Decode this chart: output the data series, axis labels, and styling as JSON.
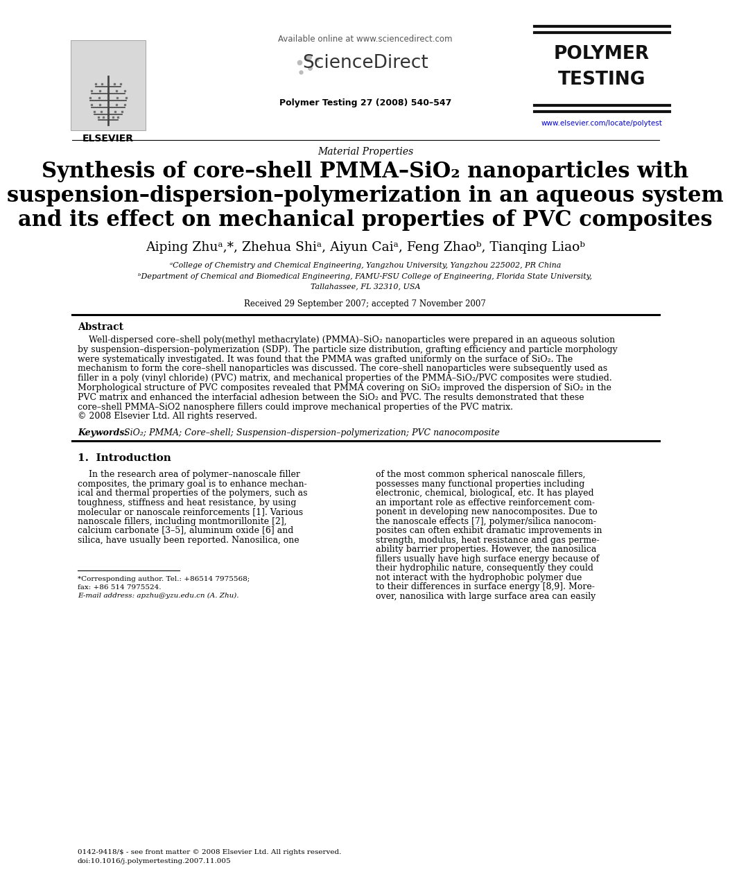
{
  "bg_color": "#ffffff",
  "available_online": "Available online at www.sciencedirect.com",
  "sciencedirect": "ScienceDirect",
  "journal_info": "Polymer Testing 27 (2008) 540–547",
  "journal_url": "www.elsevier.com/locate/polytest",
  "polymer_testing_line1": "POLYMER",
  "polymer_testing_line2": "TESTING",
  "elsevier": "ELSEVIER",
  "section_label": "Material Properties",
  "title_line1": "Synthesis of core–shell PMMA–SiO₂ nanoparticles with",
  "title_line2": "suspension–dispersion–polymerization in an aqueous system",
  "title_line3": "and its effect on mechanical properties of PVC composites",
  "authors": "Aiping Zhuᵃ,*, Zhehua Shiᵃ, Aiyun Caiᵃ, Feng Zhaoᵇ, Tianqing Liaoᵇ",
  "affil_a": "ᵃCollege of Chemistry and Chemical Engineering, Yangzhou University, Yangzhou 225002, PR China",
  "affil_b": "ᵇDepartment of Chemical and Biomedical Engineering, FAMU-FSU College of Engineering, Florida State University,",
  "affil_b2": "Tallahassee, FL 32310, USA",
  "received": "Received 29 September 2007; accepted 7 November 2007",
  "abstract_label": "Abstract",
  "abstract_lines": [
    "    Well-dispersed core–shell poly(methyl methacrylate) (PMMA)–SiO₂ nanoparticles were prepared in an aqueous solution",
    "by suspension–dispersion–polymerization (SDP). The particle size distribution, grafting efficiency and particle morphology",
    "were systematically investigated. It was found that the PMMA was grafted uniformly on the surface of SiO₂. The",
    "mechanism to form the core–shell nanoparticles was discussed. The core–shell nanoparticles were subsequently used as",
    "filler in a poly (vinyl chloride) (PVC) matrix, and mechanical properties of the PMMA–SiO₂/PVC composites were studied.",
    "Morphological structure of PVC composites revealed that PMMA covering on SiO₂ improved the dispersion of SiO₂ in the",
    "PVC matrix and enhanced the interfacial adhesion between the SiO₂ and PVC. The results demonstrated that these",
    "core–shell PMMA–SiO2 nanosphere fillers could improve mechanical properties of the PVC matrix.",
    "© 2008 Elsevier Ltd. All rights reserved."
  ],
  "keywords_label": "Keywords:",
  "keywords_text": " SiO₂; PMMA; Core–shell; Suspension–dispersion–polymerization; PVC nanocomposite",
  "intro_heading": "1.  Introduction",
  "intro_col1_lines": [
    "    In the research area of polymer–nanoscale filler",
    "composites, the primary goal is to enhance mechan-",
    "ical and thermal properties of the polymers, such as",
    "toughness, stiffness and heat resistance, by using",
    "molecular or nanoscale reinforcements [1]. Various",
    "nanoscale fillers, including montmorillonite [2],",
    "calcium carbonate [3–5], aluminum oxide [6] and",
    "silica, have usually been reported. Nanosilica, one"
  ],
  "intro_col2_lines": [
    "of the most common spherical nanoscale fillers,",
    "possesses many functional properties including",
    "electronic, chemical, biological, etc. It has played",
    "an important role as effective reinforcement com-",
    "ponent in developing new nanocomposites. Due to",
    "the nanoscale effects [7], polymer/silica nanocom-",
    "posites can often exhibit dramatic improvements in",
    "strength, modulus, heat resistance and gas perme-",
    "ability barrier properties. However, the nanosilica",
    "fillers usually have high surface energy because of",
    "their hydrophilic nature, consequently they could",
    "not interact with the hydrophobic polymer due",
    "to their differences in surface energy [8,9]. More-",
    "over, nanosilica with large surface area can easily"
  ],
  "footnote1": "*Corresponding author. Tel.: +86514 7975568;",
  "footnote2": "fax: +86 514 7975524.",
  "footnote3": "E-mail address: apzhu@yzu.edu.cn (A. Zhu).",
  "bottom_text1": "0142-9418/$ - see front matter © 2008 Elsevier Ltd. All rights reserved.",
  "bottom_text2": "doi:10.1016/j.polymertesting.2007.11.005"
}
